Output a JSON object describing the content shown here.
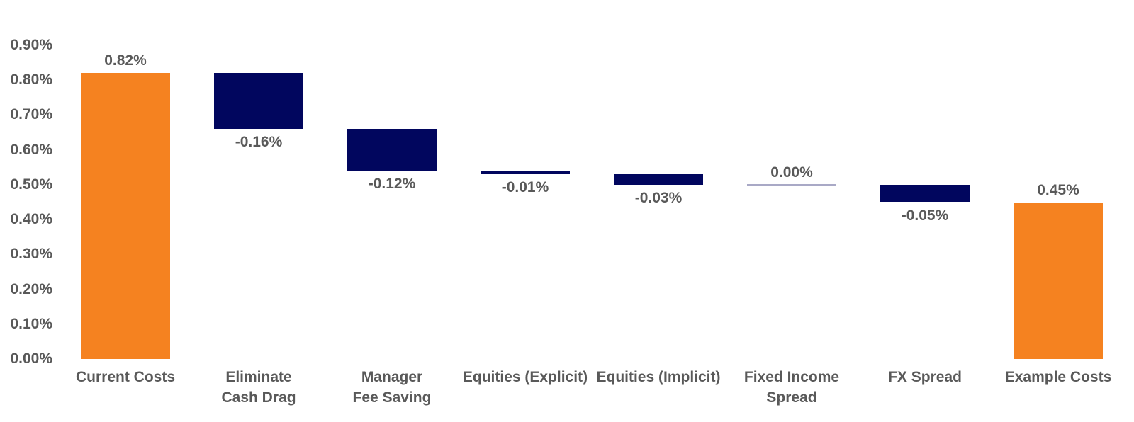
{
  "chart_data": {
    "type": "bar",
    "subtype": "waterfall",
    "title": "",
    "xlabel": "",
    "ylabel": "",
    "ylim": [
      0.0,
      0.9
    ],
    "grid": false,
    "legend": null,
    "categories": [
      "Current Costs",
      "Eliminate Cash Drag",
      "Manager Fee Saving",
      "Equities (Explicit)",
      "Equities (Implicit)",
      "Fixed Income Spread",
      "FX Spread",
      "Example Costs"
    ],
    "values": [
      0.82,
      -0.16,
      -0.12,
      -0.01,
      -0.03,
      0.0,
      -0.05,
      0.45
    ],
    "yticks": [
      {
        "value": 0.9,
        "label": "0.90%"
      },
      {
        "value": 0.8,
        "label": "0.80%"
      },
      {
        "value": 0.7,
        "label": "0.70%"
      },
      {
        "value": 0.6,
        "label": "0.60%"
      },
      {
        "value": 0.5,
        "label": "0.50%"
      },
      {
        "value": 0.4,
        "label": "0.40%"
      },
      {
        "value": 0.3,
        "label": "0.30%"
      },
      {
        "value": 0.2,
        "label": "0.20%"
      },
      {
        "value": 0.1,
        "label": "0.10%"
      },
      {
        "value": 0.0,
        "label": "0.00%"
      }
    ],
    "bars": [
      {
        "category": "Current Costs",
        "category_lines": "Current Costs",
        "start": 0.0,
        "end": 0.82,
        "kind": "total",
        "label": "0.82%",
        "label_pos": "above"
      },
      {
        "category": "Eliminate Cash Drag",
        "category_lines": "Eliminate\nCash Drag",
        "start": 0.82,
        "end": 0.66,
        "kind": "delta",
        "label": "-0.16%",
        "label_pos": "below"
      },
      {
        "category": "Manager Fee Saving",
        "category_lines": "Manager\nFee Saving",
        "start": 0.66,
        "end": 0.54,
        "kind": "delta",
        "label": "-0.12%",
        "label_pos": "below"
      },
      {
        "category": "Equities (Explicit)",
        "category_lines": "Equities (Explicit)",
        "start": 0.54,
        "end": 0.53,
        "kind": "delta",
        "label": "-0.01%",
        "label_pos": "below"
      },
      {
        "category": "Equities (Implicit)",
        "category_lines": "Equities (Implicit)",
        "start": 0.53,
        "end": 0.5,
        "kind": "delta",
        "label": "-0.03%",
        "label_pos": "below"
      },
      {
        "category": "Fixed Income Spread",
        "category_lines": "Fixed Income\nSpread",
        "start": 0.5,
        "end": 0.5,
        "kind": "zero",
        "label": "0.00%",
        "label_pos": "above"
      },
      {
        "category": "FX Spread",
        "category_lines": "FX Spread",
        "start": 0.5,
        "end": 0.45,
        "kind": "delta",
        "label": "-0.05%",
        "label_pos": "below"
      },
      {
        "category": "Example Costs",
        "category_lines": "Example Costs",
        "start": 0.0,
        "end": 0.45,
        "kind": "total",
        "label": "0.45%",
        "label_pos": "above"
      }
    ],
    "colors": {
      "total_bar": "#F58220",
      "delta_bar": "#01065E",
      "zero_connector": "#A9A9C6",
      "text": "#595959",
      "background": "#FFFFFF"
    }
  }
}
